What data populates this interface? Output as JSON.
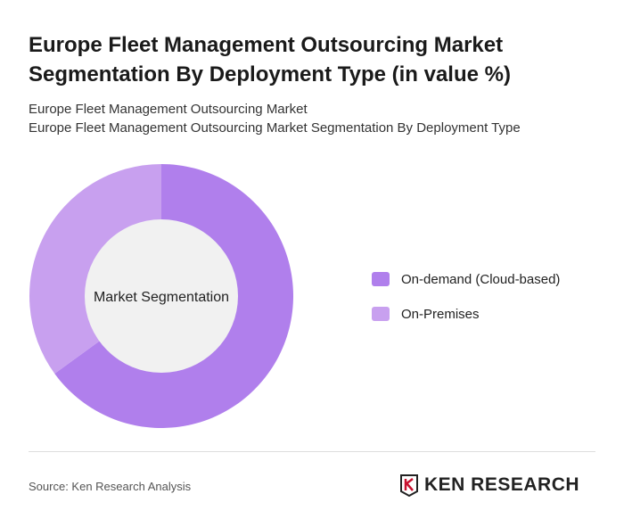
{
  "title": "Europe Fleet Management Outsourcing Market Segmentation By Deployment Type (in value %)",
  "subtitle1": "Europe Fleet Management Outsourcing Market",
  "subtitle2": "Europe Fleet Management Outsourcing Market Segmentation By Deployment Type",
  "chart_data": {
    "type": "pie",
    "variant": "donut",
    "center_label": "Market Segmentation",
    "categories": [
      "On-demand (Cloud-based)",
      "On-Premises"
    ],
    "values": [
      65,
      35
    ],
    "colors": [
      "#b07fec",
      "#c8a0ef"
    ],
    "legend_position": "right"
  },
  "source": "Source: Ken Research Analysis",
  "logo": "KEN RESEARCH"
}
